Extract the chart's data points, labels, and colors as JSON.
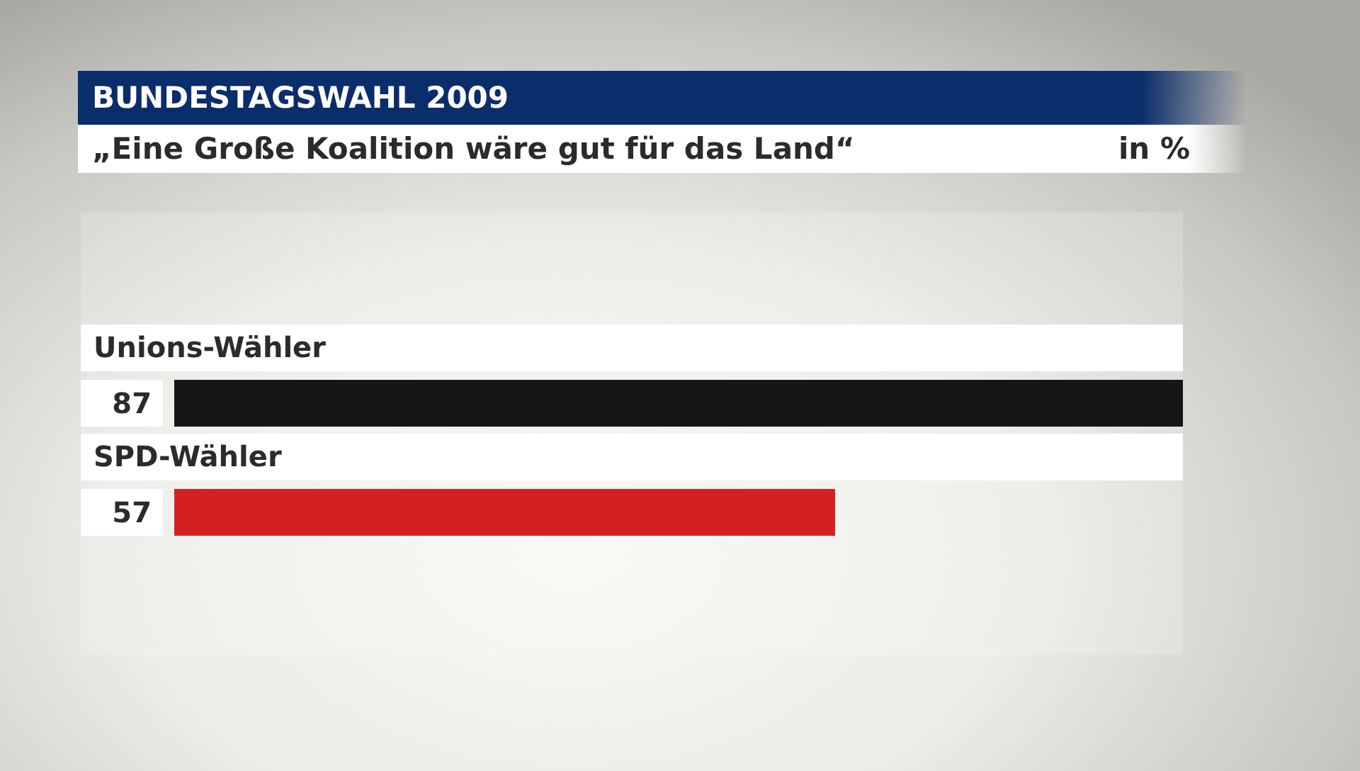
{
  "chart_data": {
    "type": "bar",
    "orientation": "horizontal",
    "title": "BUNDESTAGSWAHL 2009",
    "subtitle": "„Eine Große Koalition wäre gut für das Land“",
    "annotations": [
      "in %"
    ],
    "categories": [
      "Unions-Wähler",
      "SPD-Wähler"
    ],
    "values": [
      87,
      57
    ],
    "colors": [
      "#161616",
      "#d42020"
    ],
    "data_labels": true
  }
}
